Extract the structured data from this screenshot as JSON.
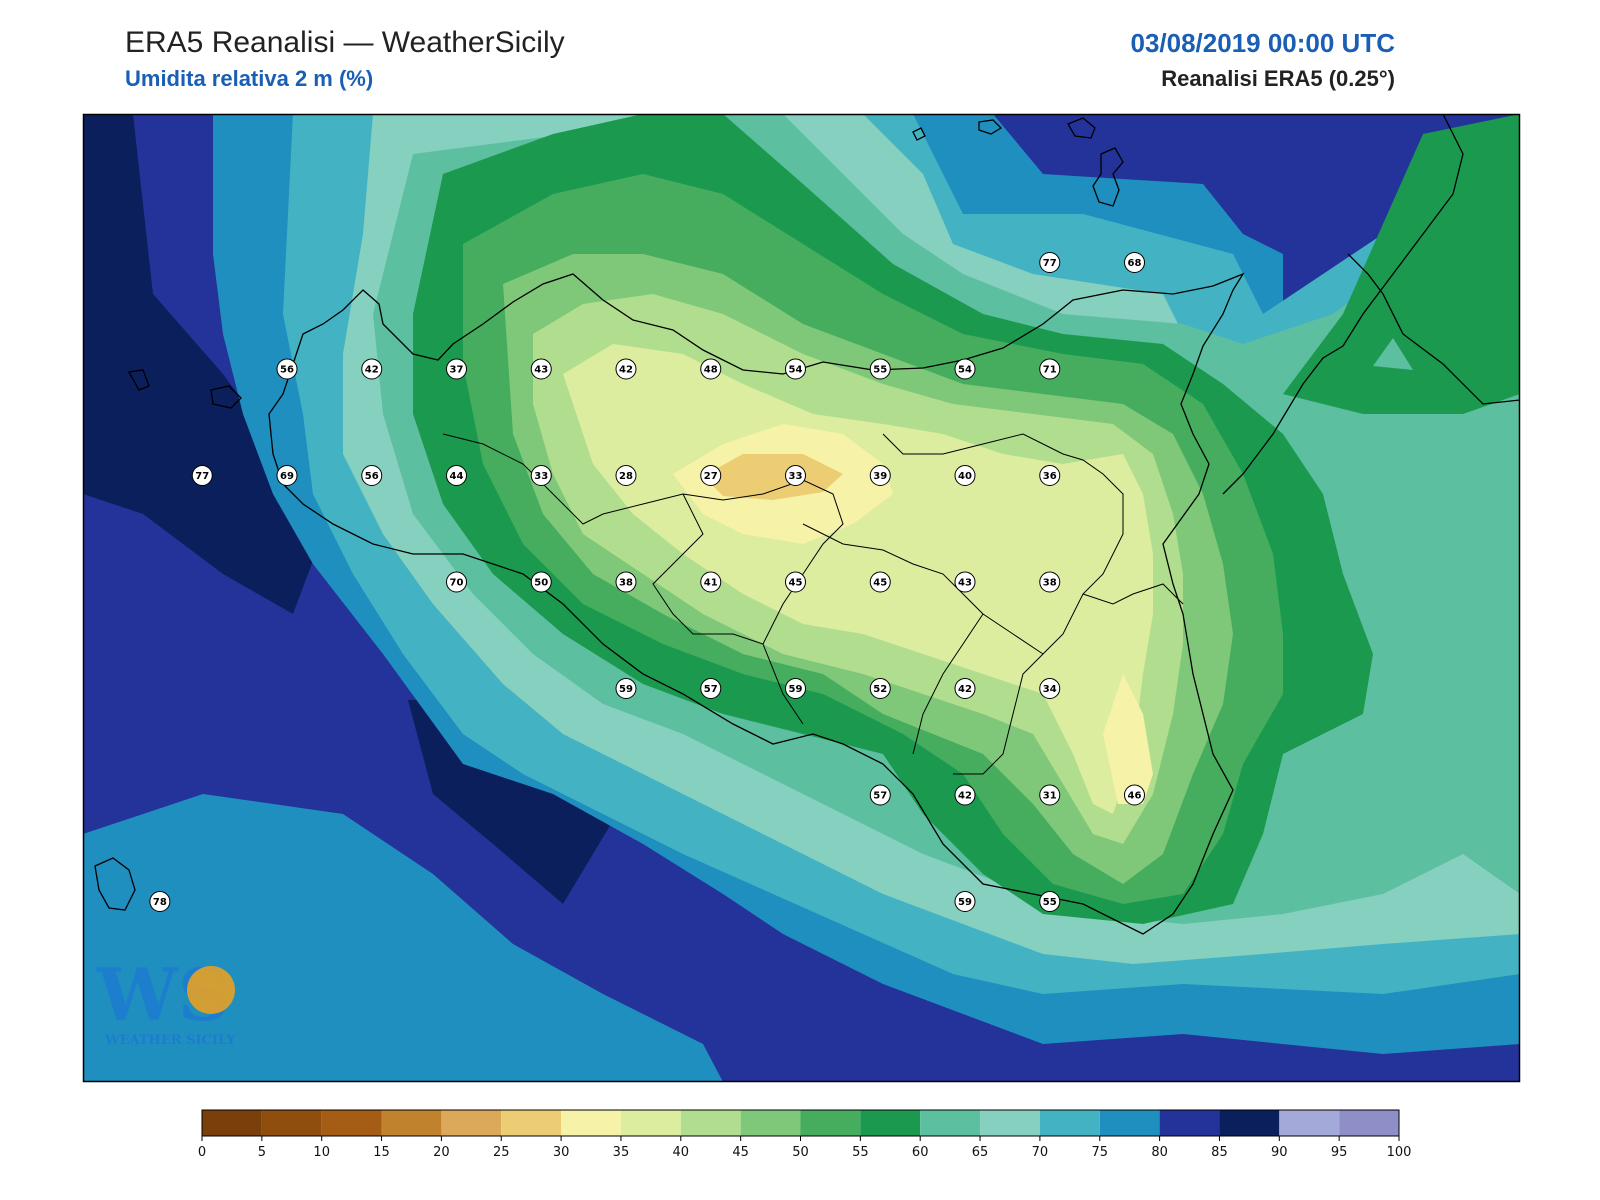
{
  "header": {
    "title": "ERA5 Reanalisi — WeatherSicily",
    "subtitle": "Umidita relativa 2 m (%)",
    "datetime": "03/08/2019 00:00 UTC",
    "source": "Reanalisi ERA5 (0.25°)"
  },
  "logo": {
    "letters": "WS",
    "text": "WEATHER SICILY"
  },
  "colorbar": {
    "ticks": [
      "0",
      "5",
      "10",
      "15",
      "20",
      "25",
      "30",
      "35",
      "40",
      "45",
      "50",
      "55",
      "60",
      "65",
      "70",
      "75",
      "80",
      "85",
      "90",
      "95",
      "100"
    ],
    "colors": [
      "#7a3f0a",
      "#8f4d0e",
      "#a55d16",
      "#c1822e",
      "#dca95a",
      "#eccd74",
      "#f6f2a8",
      "#dceda0",
      "#b0de8e",
      "#7fc87a",
      "#47ad5e",
      "#1b9a4f",
      "#5cbfa0",
      "#86d0c0",
      "#43b3c4",
      "#1f8fc0",
      "#24339a",
      "#0a1f5c",
      "#a3a9d8",
      "#8f8fc8"
    ]
  },
  "stations": [
    {
      "lon": 12.0,
      "lat": 38.25,
      "v": "56"
    },
    {
      "lon": 12.5,
      "lat": 38.25,
      "v": "42"
    },
    {
      "lon": 13.0,
      "lat": 38.25,
      "v": "37"
    },
    {
      "lon": 13.5,
      "lat": 38.25,
      "v": "43"
    },
    {
      "lon": 14.0,
      "lat": 38.25,
      "v": "42"
    },
    {
      "lon": 14.5,
      "lat": 38.25,
      "v": "48"
    },
    {
      "lon": 15.0,
      "lat": 38.25,
      "v": "54"
    },
    {
      "lon": 15.5,
      "lat": 38.25,
      "v": "55"
    },
    {
      "lon": 16.0,
      "lat": 38.25,
      "v": "54"
    },
    {
      "lon": 16.5,
      "lat": 38.25,
      "v": "71"
    },
    {
      "lon": 16.5,
      "lat": 38.75,
      "v": "77"
    },
    {
      "lon": 17.0,
      "lat": 38.75,
      "v": "68"
    },
    {
      "lon": 11.5,
      "lat": 37.75,
      "v": "77"
    },
    {
      "lon": 12.0,
      "lat": 37.75,
      "v": "69"
    },
    {
      "lon": 12.5,
      "lat": 37.75,
      "v": "56"
    },
    {
      "lon": 13.0,
      "lat": 37.75,
      "v": "44"
    },
    {
      "lon": 13.5,
      "lat": 37.75,
      "v": "33"
    },
    {
      "lon": 14.0,
      "lat": 37.75,
      "v": "28"
    },
    {
      "lon": 14.5,
      "lat": 37.75,
      "v": "27"
    },
    {
      "lon": 15.0,
      "lat": 37.75,
      "v": "33"
    },
    {
      "lon": 15.5,
      "lat": 37.75,
      "v": "39"
    },
    {
      "lon": 16.0,
      "lat": 37.75,
      "v": "40"
    },
    {
      "lon": 16.5,
      "lat": 37.75,
      "v": "36"
    },
    {
      "lon": 13.0,
      "lat": 37.25,
      "v": "70"
    },
    {
      "lon": 13.5,
      "lat": 37.25,
      "v": "50"
    },
    {
      "lon": 14.0,
      "lat": 37.25,
      "v": "38"
    },
    {
      "lon": 14.5,
      "lat": 37.25,
      "v": "41"
    },
    {
      "lon": 15.0,
      "lat": 37.25,
      "v": "45"
    },
    {
      "lon": 15.5,
      "lat": 37.25,
      "v": "45"
    },
    {
      "lon": 16.0,
      "lat": 37.25,
      "v": "43"
    },
    {
      "lon": 16.5,
      "lat": 37.25,
      "v": "38"
    },
    {
      "lon": 14.0,
      "lat": 36.75,
      "v": "59"
    },
    {
      "lon": 14.5,
      "lat": 36.75,
      "v": "57"
    },
    {
      "lon": 15.0,
      "lat": 36.75,
      "v": "59"
    },
    {
      "lon": 15.5,
      "lat": 36.75,
      "v": "52"
    },
    {
      "lon": 16.0,
      "lat": 36.75,
      "v": "42"
    },
    {
      "lon": 16.5,
      "lat": 36.75,
      "v": "34"
    },
    {
      "lon": 15.5,
      "lat": 36.25,
      "v": "57"
    },
    {
      "lon": 16.0,
      "lat": 36.25,
      "v": "42"
    },
    {
      "lon": 16.5,
      "lat": 36.25,
      "v": "31"
    },
    {
      "lon": 17.0,
      "lat": 36.25,
      "v": "46"
    },
    {
      "lon": 11.25,
      "lat": 35.75,
      "v": "78"
    },
    {
      "lon": 16.0,
      "lat": 35.75,
      "v": "59"
    },
    {
      "lon": 16.5,
      "lat": 35.75,
      "v": "55"
    }
  ]
}
